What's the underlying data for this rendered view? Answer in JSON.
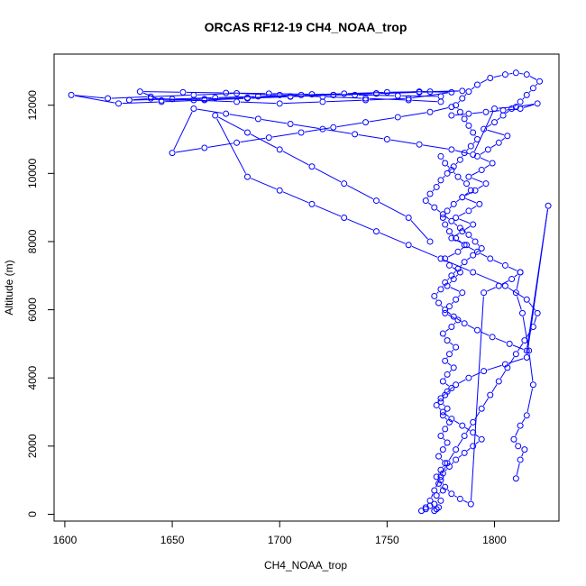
{
  "chart_data": {
    "type": "scatter",
    "title": "ORCAS RF12-19 CH4_NOAA_trop",
    "xlabel": "CH4_NOAA_trop",
    "ylabel": "Altitude (m)",
    "xlim": [
      1595,
      1830
    ],
    "ylim": [
      -200,
      13500
    ],
    "xticks": [
      1600,
      1650,
      1700,
      1750,
      1800
    ],
    "yticks": [
      0,
      2000,
      4000,
      6000,
      8000,
      10000,
      12000
    ],
    "grid": false,
    "legend": "none",
    "marker": "open-circle",
    "line": true,
    "color": "#0000ff",
    "series": [
      {
        "x": [
          1773,
          1774,
          1772,
          1775,
          1773,
          1776,
          1774,
          1773,
          1775,
          1777,
          1774,
          1776,
          1778,
          1775,
          1777,
          1779,
          1776,
          1778,
          1775,
          1777,
          1780,
          1776,
          1778,
          1781,
          1777,
          1779,
          1782,
          1778,
          1776,
          1780,
          1783,
          1777,
          1779,
          1782,
          1785,
          1778,
          1781,
          1784,
          1779,
          1777,
          1783,
          1787,
          1780,
          1785,
          1790,
          1782,
          1788,
          1793,
          1785,
          1791,
          1796,
          1788,
          1794,
          1799,
          1792,
          1797,
          1802,
          1806,
          1795,
          1800,
          1804,
          1808,
          1812,
          1815,
          1818,
          1821,
          1815,
          1810,
          1805,
          1798,
          1792,
          1788,
          1785,
          1782,
          1784,
          1786,
          1788,
          1790,
          1792,
          1789,
          1786,
          1784,
          1781,
          1778,
          1775,
          1773,
          1770,
          1768,
          1772,
          1776,
          1780,
          1784,
          1788,
          1791,
          1794,
          1790,
          1786,
          1783,
          1780,
          1777,
          1775,
          1772,
          1774,
          1777,
          1781,
          1786,
          1792,
          1799,
          1807,
          1815,
          1825,
          1815,
          1805,
          1795,
          1788,
          1782,
          1778,
          1775,
          1773,
          1776,
          1780,
          1785,
          1790,
          1794,
          1790,
          1786,
          1782,
          1779,
          1776,
          1775,
          1777,
          1780,
          1784,
          1789,
          1795,
          1802,
          1808,
          1812,
          1805,
          1798,
          1792,
          1786,
          1782,
          1779,
          1777,
          1776,
          1778,
          1781,
          1785,
          1789,
          1787,
          1783,
          1780,
          1777,
          1775
        ],
        "y": [
          150,
          200,
          300,
          400,
          550,
          700,
          900,
          1100,
          1300,
          1500,
          1700,
          1900,
          2100,
          2300,
          2500,
          2700,
          2900,
          3100,
          3300,
          3500,
          3700,
          3900,
          4100,
          4300,
          4500,
          4700,
          4900,
          5100,
          5300,
          5500,
          5700,
          5900,
          6100,
          6300,
          6500,
          6700,
          6900,
          7100,
          7300,
          7500,
          7700,
          7900,
          8100,
          8300,
          8500,
          8700,
          8900,
          9100,
          9300,
          9500,
          9700,
          9900,
          10100,
          10300,
          10500,
          10700,
          10900,
          11100,
          11300,
          11500,
          11700,
          11900,
          12100,
          12300,
          12500,
          12700,
          12900,
          12950,
          12900,
          12800,
          12600,
          12400,
          12200,
          12000,
          11800,
          11600,
          11400,
          11200,
          11000,
          10800,
          10600,
          10400,
          10200,
          10000,
          9800,
          9600,
          9400,
          9200,
          9000,
          8800,
          8600,
          8400,
          8200,
          8000,
          7800,
          7600,
          7400,
          7200,
          7000,
          6800,
          6600,
          6400,
          6200,
          6000,
          5800,
          5600,
          5400,
          5200,
          5000,
          4800,
          9050,
          4600,
          4400,
          4200,
          4000,
          3800,
          3600,
          3400,
          3200,
          3000,
          2800,
          2600,
          2400,
          2200,
          2000,
          1800,
          1600,
          1400,
          1200,
          1000,
          800,
          600,
          450,
          300,
          6500,
          6700,
          6900,
          7100,
          7300,
          7500,
          7700,
          7900,
          8100,
          8300,
          8500,
          8700,
          8900,
          9100,
          9300,
          9500,
          9700,
          9900,
          10100,
          10300,
          10500
        ]
      },
      {
        "x": [
          1775,
          1760,
          1740,
          1720,
          1700,
          1680,
          1660,
          1640,
          1620,
          1603,
          1625,
          1645,
          1665,
          1685,
          1705,
          1725,
          1745,
          1765,
          1780,
          1760,
          1740,
          1720,
          1700,
          1680,
          1660,
          1640,
          1630,
          1650,
          1670,
          1690,
          1710,
          1730,
          1750,
          1770,
          1785,
          1765,
          1745,
          1725,
          1705,
          1685,
          1665,
          1645,
          1635,
          1655,
          1675,
          1695,
          1715,
          1735,
          1755,
          1775
        ],
        "y": [
          12100,
          12150,
          12200,
          12250,
          12300,
          12350,
          12300,
          12250,
          12200,
          12300,
          12050,
          12100,
          12150,
          12200,
          12250,
          12300,
          12350,
          12400,
          12380,
          12200,
          12150,
          12100,
          12050,
          12100,
          12150,
          12200,
          12150,
          12180,
          12220,
          12260,
          12300,
          12340,
          12380,
          12400,
          12420,
          12380,
          12340,
          12300,
          12260,
          12220,
          12180,
          12140,
          12400,
          12380,
          12360,
          12340,
          12320,
          12300,
          12280,
          12260
        ]
      },
      {
        "x": [
          1780,
          1770,
          1755,
          1740,
          1725,
          1710,
          1695,
          1680,
          1665,
          1650,
          1660,
          1675,
          1690,
          1705,
          1720,
          1735,
          1750,
          1765,
          1780,
          1790,
          1800,
          1810,
          1820,
          1812,
          1804,
          1796,
          1788,
          1780
        ],
        "y": [
          11950,
          11800,
          11650,
          11500,
          11350,
          11200,
          11050,
          10900,
          10750,
          10600,
          11900,
          11750,
          11600,
          11450,
          11300,
          11150,
          11000,
          10850,
          10700,
          10550,
          11900,
          11950,
          12050,
          11900,
          11850,
          11800,
          11750,
          11700
        ]
      },
      {
        "x": [
          1770,
          1760,
          1745,
          1730,
          1715,
          1700,
          1685,
          1670,
          1685,
          1700,
          1715,
          1730,
          1745,
          1760,
          1775,
          1790,
          1805,
          1815,
          1820,
          1818,
          1814,
          1810,
          1806,
          1802,
          1798,
          1794,
          1790,
          1786,
          1782,
          1778,
          1775,
          1772,
          1770,
          1768,
          1766,
          1768,
          1770,
          1772
        ],
        "y": [
          8000,
          8700,
          9200,
          9700,
          10200,
          10700,
          11200,
          11700,
          9900,
          9500,
          9100,
          8700,
          8300,
          7900,
          7500,
          7100,
          6700,
          6300,
          5900,
          5500,
          5100,
          4700,
          4300,
          3900,
          3500,
          3100,
          2700,
          2300,
          1900,
          1500,
          1100,
          700,
          400,
          200,
          100,
          150,
          250,
          100
        ]
      },
      {
        "x": [
          1810,
          1812,
          1814,
          1811,
          1809,
          1812,
          1815,
          1818,
          1816,
          1813,
          1810,
          1812
        ],
        "y": [
          1050,
          1600,
          1900,
          2000,
          2200,
          2600,
          2900,
          3800,
          4800,
          5900,
          6500,
          7100
        ]
      }
    ]
  }
}
